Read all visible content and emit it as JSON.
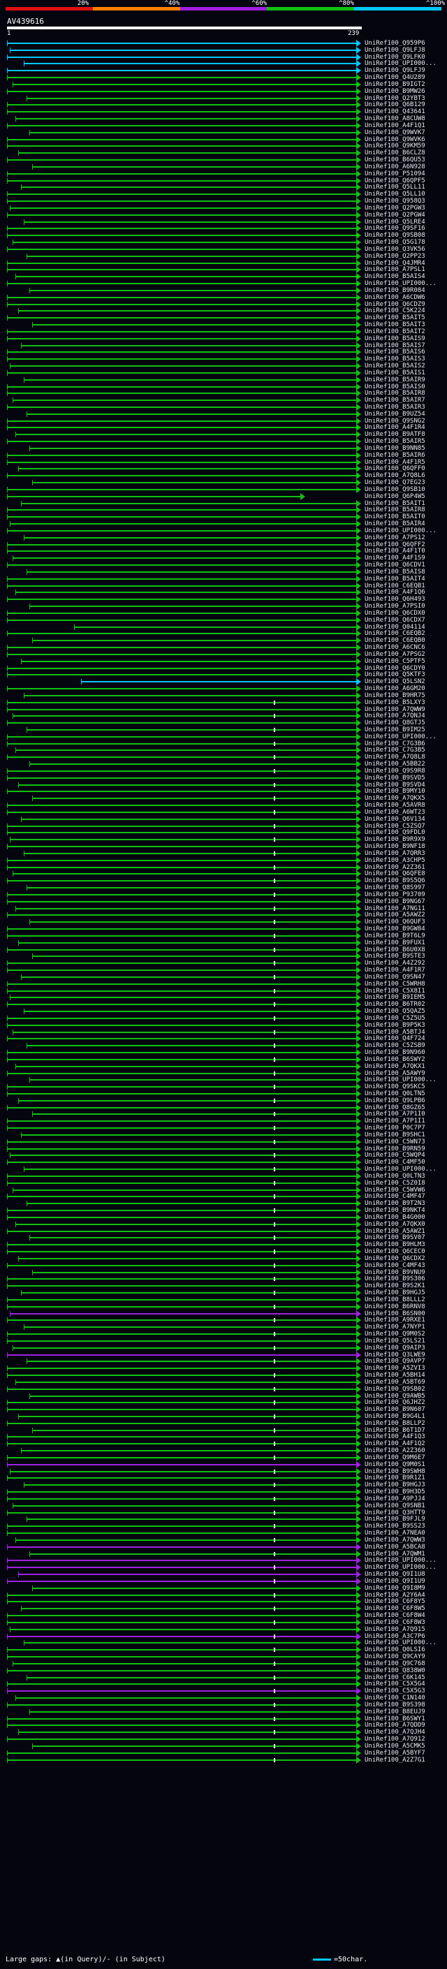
{
  "scale": {
    "labels": [
      "20%",
      "^40%",
      "^60%",
      "^80%",
      "^100%"
    ],
    "colors": [
      "#e01010",
      "#ff8000",
      "#a020e0",
      "#10c010",
      "#00c8ff"
    ]
  },
  "query": {
    "id": "AV439616",
    "start": "1",
    "end": "239"
  },
  "hits": [
    {
      "label": "UniRef100_Q959P6",
      "color": "#00c8ff"
    },
    {
      "label": "UniRef100_Q9LFJ8",
      "color": "#00c8ff"
    },
    {
      "label": "UniRef100_Q9LFK0",
      "color": "#00c8ff"
    },
    {
      "label": "UniRef100_UPI000...",
      "color": "#00c8ff"
    },
    {
      "label": "UniRef100_Q9LFJ9",
      "color": "#00c8ff"
    },
    {
      "label": "UniRef100_Q4U289",
      "color": "#10c010"
    },
    {
      "label": "UniRef100_B9IGT2",
      "color": "#10c010"
    },
    {
      "label": "UniRef100_B9MW26",
      "color": "#10c010"
    },
    {
      "label": "UniRef100_Q2YBT3",
      "color": "#10c010"
    },
    {
      "label": "UniRef100_Q6B129",
      "color": "#10c010"
    },
    {
      "label": "UniRef100_Q43641",
      "color": "#10c010"
    },
    {
      "label": "UniRef100_A8CUW8",
      "color": "#10c010"
    },
    {
      "label": "UniRef100_A4F1Q1",
      "color": "#10c010"
    },
    {
      "label": "UniRef100_Q9WVK7",
      "color": "#10c010"
    },
    {
      "label": "UniRef100_Q9WVK6",
      "color": "#10c010"
    },
    {
      "label": "UniRef100_Q9KM59",
      "color": "#10c010"
    },
    {
      "label": "UniRef100_B6CLZ8",
      "color": "#10c010"
    },
    {
      "label": "UniRef100_B6QU53",
      "color": "#10c010"
    },
    {
      "label": "UniRef100_A6N928",
      "color": "#10c010"
    },
    {
      "label": "UniRef100_P51094",
      "color": "#10c010"
    },
    {
      "label": "UniRef100_Q6QPF5",
      "color": "#10c010"
    },
    {
      "label": "UniRef100_Q5LL11",
      "color": "#10c010"
    },
    {
      "label": "UniRef100_Q5LL10",
      "color": "#10c010"
    },
    {
      "label": "UniRef100_Q958Q3",
      "color": "#10c010"
    },
    {
      "label": "UniRef100_Q2PGW3",
      "color": "#10c010"
    },
    {
      "label": "UniRef100_Q2PGW4",
      "color": "#10c010"
    },
    {
      "label": "UniRef100_Q5LRE4",
      "color": "#10c010"
    },
    {
      "label": "UniRef100_Q9SF16",
      "color": "#10c010"
    },
    {
      "label": "UniRef100_Q9SB08",
      "color": "#10c010"
    },
    {
      "label": "UniRef100_Q5G178",
      "color": "#10c010"
    },
    {
      "label": "UniRef100_Q3VK56",
      "color": "#10c010"
    },
    {
      "label": "UniRef100_Q2PP23",
      "color": "#10c010"
    },
    {
      "label": "UniRef100_Q4JMR4",
      "color": "#10c010"
    },
    {
      "label": "UniRef100_A7PSL1",
      "color": "#10c010"
    },
    {
      "label": "UniRef100_B5AIS4",
      "color": "#10c010"
    },
    {
      "label": "UniRef100_UPI000...",
      "color": "#10c010"
    },
    {
      "label": "UniRef100_B9R084",
      "color": "#10c010"
    },
    {
      "label": "UniRef100_A6CDW6",
      "color": "#10c010"
    },
    {
      "label": "UniRef100_Q6CDZ9",
      "color": "#10c010"
    },
    {
      "label": "UniRef100_C5K224",
      "color": "#10c010"
    },
    {
      "label": "UniRef100_B5AIT5",
      "color": "#10c010"
    },
    {
      "label": "UniRef100_B5AIT3",
      "color": "#10c010"
    },
    {
      "label": "UniRef100_B5AIT2",
      "color": "#10c010"
    },
    {
      "label": "UniRef100_B5AIS9",
      "color": "#10c010"
    },
    {
      "label": "UniRef100_B5AIS7",
      "color": "#10c010"
    },
    {
      "label": "UniRef100_B5AIS6",
      "color": "#10c010"
    },
    {
      "label": "UniRef100_B5AIS3",
      "color": "#10c010"
    },
    {
      "label": "UniRef100_B5AIS2",
      "color": "#10c010"
    },
    {
      "label": "UniRef100_B5AIS1",
      "color": "#10c010"
    },
    {
      "label": "UniRef100_B5AIR9",
      "color": "#10c010"
    },
    {
      "label": "UniRef100_B5AIS0",
      "color": "#10c010"
    },
    {
      "label": "UniRef100_B5AIR8",
      "color": "#10c010"
    },
    {
      "label": "UniRef100_B5AIR7",
      "color": "#10c010"
    },
    {
      "label": "UniRef100_B5AIR3",
      "color": "#10c010"
    },
    {
      "label": "UniRef100_B9UZ54",
      "color": "#10c010"
    },
    {
      "label": "UniRef100_Q9SNG2",
      "color": "#10c010"
    },
    {
      "label": "UniRef100_A4F1R4",
      "color": "#10c010"
    },
    {
      "label": "UniRef100_B9ATF8",
      "color": "#10c010"
    },
    {
      "label": "UniRef100_B5AIR5",
      "color": "#10c010"
    },
    {
      "label": "UniRef100_B9NN85",
      "color": "#10c010"
    },
    {
      "label": "UniRef100_B5AIR6",
      "color": "#10c010"
    },
    {
      "label": "UniRef100_A4F1R5",
      "color": "#10c010"
    },
    {
      "label": "UniRef100_Q6QFF0",
      "color": "#10c010"
    },
    {
      "label": "UniRef100_A7Q8L6",
      "color": "#10c010"
    },
    {
      "label": "UniRef100_Q7EG23",
      "color": "#10c010"
    },
    {
      "label": "UniRef100_Q9SB10",
      "color": "#10c010"
    },
    {
      "label": "UniRef100_Q6P4W5",
      "color": "#10c010"
    },
    {
      "label": "UniRef100_B5AIT1",
      "color": "#10c010"
    },
    {
      "label": "UniRef100_B5AIR8",
      "color": "#10c010"
    },
    {
      "label": "UniRef100_B5AIT0",
      "color": "#10c010"
    },
    {
      "label": "UniRef100_B5AIR4",
      "color": "#10c010"
    },
    {
      "label": "UniRef100_UPI000...",
      "color": "#10c010"
    },
    {
      "label": "UniRef100_A7PS12",
      "color": "#10c010"
    },
    {
      "label": "UniRef100_Q6QFF2",
      "color": "#10c010"
    },
    {
      "label": "UniRef100_A4F1T0",
      "color": "#10c010"
    },
    {
      "label": "UniRef100_A4F1S9",
      "color": "#10c010"
    },
    {
      "label": "UniRef100_Q6CDV1",
      "color": "#10c010"
    },
    {
      "label": "UniRef100_B5AIS8",
      "color": "#10c010"
    },
    {
      "label": "UniRef100_B5AIT4",
      "color": "#10c010"
    },
    {
      "label": "UniRef100_C6EQB1",
      "color": "#10c010"
    },
    {
      "label": "UniRef100_A4F1Q6",
      "color": "#10c010"
    },
    {
      "label": "UniRef100_Q6H493",
      "color": "#10c010"
    },
    {
      "label": "UniRef100_A7PSI0",
      "color": "#10c010"
    },
    {
      "label": "UniRef100_Q6CDX0",
      "color": "#10c010"
    },
    {
      "label": "UniRef100_Q6CDX7",
      "color": "#10c010"
    },
    {
      "label": "UniRef100_Q04114",
      "color": "#10c010"
    },
    {
      "label": "UniRef100_C6EQB2",
      "color": "#10c010"
    },
    {
      "label": "UniRef100_C6EQB0",
      "color": "#10c010"
    },
    {
      "label": "UniRef100_A6CNC6",
      "color": "#10c010"
    },
    {
      "label": "UniRef100_A7PSG2",
      "color": "#10c010"
    },
    {
      "label": "UniRef100_C5PTF5",
      "color": "#10c010"
    },
    {
      "label": "UniRef100_Q6CDY0",
      "color": "#10c010"
    },
    {
      "label": "UniRef100_Q5KTF3",
      "color": "#10c010"
    },
    {
      "label": "UniRef100_Q5LSN2",
      "color": "#00c8ff"
    },
    {
      "label": "UniRef100_A6GM20",
      "color": "#10c010"
    },
    {
      "label": "UniRef100_B9HR75",
      "color": "#10c010"
    },
    {
      "label": "UniRef100_B5LXY3",
      "color": "#10c010"
    },
    {
      "label": "UniRef100_A7QWW9",
      "color": "#10c010"
    },
    {
      "label": "UniRef100_A7QNJ4",
      "color": "#10c010"
    },
    {
      "label": "UniRef100_Q8GTJ5",
      "color": "#10c010"
    },
    {
      "label": "UniRef100_B9IM25",
      "color": "#10c010"
    },
    {
      "label": "UniRef100_UPI000...",
      "color": "#10c010"
    },
    {
      "label": "UniRef100_C7G3B6",
      "color": "#10c010"
    },
    {
      "label": "UniRef100_C7G3B5",
      "color": "#10c010"
    },
    {
      "label": "UniRef100_A7Q8L8",
      "color": "#10c010"
    },
    {
      "label": "UniRef100_A5BB22",
      "color": "#10c010"
    },
    {
      "label": "UniRef100_Q9S9R8",
      "color": "#10c010"
    },
    {
      "label": "UniRef100_B9SVD5",
      "color": "#10c010"
    },
    {
      "label": "UniRef100_B9SVD4",
      "color": "#10c010"
    },
    {
      "label": "UniRef100_B9MY10",
      "color": "#10c010"
    },
    {
      "label": "UniRef100_A7QKX5",
      "color": "#10c010"
    },
    {
      "label": "UniRef100_A5AVR8",
      "color": "#10c010"
    },
    {
      "label": "UniRef100_A6WT23",
      "color": "#10c010"
    },
    {
      "label": "UniRef100_Q6V134",
      "color": "#10c010"
    },
    {
      "label": "UniRef100_C5ZSQ7",
      "color": "#10c010"
    },
    {
      "label": "UniRef100_Q9FDL0",
      "color": "#10c010"
    },
    {
      "label": "UniRef100_B9R9X9",
      "color": "#10c010"
    },
    {
      "label": "UniRef100_B9NF18",
      "color": "#10c010"
    },
    {
      "label": "UniRef100_A7QRR3",
      "color": "#10c010"
    },
    {
      "label": "UniRef100_A3CHP5",
      "color": "#10c010"
    },
    {
      "label": "UniRef100_A2Z361",
      "color": "#10c010"
    },
    {
      "label": "UniRef100_Q6QFE8",
      "color": "#10c010"
    },
    {
      "label": "UniRef100_B9S5Q6",
      "color": "#10c010"
    },
    {
      "label": "UniRef100_Q8S997",
      "color": "#10c010"
    },
    {
      "label": "UniRef100_P93709",
      "color": "#10c010"
    },
    {
      "label": "UniRef100_B9NG67",
      "color": "#10c010"
    },
    {
      "label": "UniRef100_A7NG11",
      "color": "#10c010"
    },
    {
      "label": "UniRef100_A5AWZ2",
      "color": "#10c010"
    },
    {
      "label": "UniRef100_Q6QUF3",
      "color": "#10c010"
    },
    {
      "label": "UniRef100_B9GW84",
      "color": "#10c010"
    },
    {
      "label": "UniRef100_B9T6L9",
      "color": "#10c010"
    },
    {
      "label": "UniRef100_B9FUX1",
      "color": "#10c010"
    },
    {
      "label": "UniRef100_B6U0X8",
      "color": "#10c010"
    },
    {
      "label": "UniRef100_B9STE3",
      "color": "#10c010"
    },
    {
      "label": "UniRef100_A4Z292",
      "color": "#10c010"
    },
    {
      "label": "UniRef100_A4F1R7",
      "color": "#10c010"
    },
    {
      "label": "UniRef100_Q9SN47",
      "color": "#10c010"
    },
    {
      "label": "UniRef100_C5WRH8",
      "color": "#10c010"
    },
    {
      "label": "UniRef100_C5X8I1",
      "color": "#10c010"
    },
    {
      "label": "UniRef100_B9IEM5",
      "color": "#10c010"
    },
    {
      "label": "UniRef100_B6TR02",
      "color": "#10c010"
    },
    {
      "label": "UniRef100_Q5QAZ5",
      "color": "#10c010"
    },
    {
      "label": "UniRef100_C5Z5U5",
      "color": "#10c010"
    },
    {
      "label": "UniRef100_B9P5K3",
      "color": "#10c010"
    },
    {
      "label": "UniRef100_A5BTJ4",
      "color": "#10c010"
    },
    {
      "label": "UniRef100_Q4F724",
      "color": "#10c010"
    },
    {
      "label": "UniRef100_C5ZSB9",
      "color": "#10c010"
    },
    {
      "label": "UniRef100_B9N960",
      "color": "#10c010"
    },
    {
      "label": "UniRef100_B6SWY2",
      "color": "#10c010"
    },
    {
      "label": "UniRef100_A7QKX1",
      "color": "#10c010"
    },
    {
      "label": "UniRef100_A5AWY9",
      "color": "#10c010"
    },
    {
      "label": "UniRef100_UPI000...",
      "color": "#10c010"
    },
    {
      "label": "UniRef100_Q9SKC5",
      "color": "#10c010"
    },
    {
      "label": "UniRef100_Q0LTN5",
      "color": "#10c010"
    },
    {
      "label": "UniRef100_Q9LPB6",
      "color": "#10c010"
    },
    {
      "label": "UniRef100_Q8GZ65",
      "color": "#10c010"
    },
    {
      "label": "UniRef100_A7P1I0",
      "color": "#10c010"
    },
    {
      "label": "UniRef100_A7P1I1",
      "color": "#10c010"
    },
    {
      "label": "UniRef100_P0C7P7",
      "color": "#10c010"
    },
    {
      "label": "UniRef100_B9SHC1",
      "color": "#10c010"
    },
    {
      "label": "UniRef100_C5WN73",
      "color": "#10c010"
    },
    {
      "label": "UniRef100_B9RN59",
      "color": "#10c010"
    },
    {
      "label": "UniRef100_C5WQP4",
      "color": "#10c010"
    },
    {
      "label": "UniRef100_C4MF50",
      "color": "#10c010"
    },
    {
      "label": "UniRef100_UPI000...",
      "color": "#10c010"
    },
    {
      "label": "UniRef100_Q0LTN3",
      "color": "#10c010"
    },
    {
      "label": "UniRef100_C5Z0I8",
      "color": "#10c010"
    },
    {
      "label": "UniRef100_C5WVW6",
      "color": "#10c010"
    },
    {
      "label": "UniRef100_C4MF47",
      "color": "#10c010"
    },
    {
      "label": "UniRef100_B9T2N3",
      "color": "#10c010"
    },
    {
      "label": "UniRef100_B9NKT4",
      "color": "#10c010"
    },
    {
      "label": "UniRef100_B4G000",
      "color": "#10c010"
    },
    {
      "label": "UniRef100_A7QKX0",
      "color": "#10c010"
    },
    {
      "label": "UniRef100_A5AWZ1",
      "color": "#10c010"
    },
    {
      "label": "UniRef100_B9SV07",
      "color": "#10c010"
    },
    {
      "label": "UniRef100_B9HLM3",
      "color": "#10c010"
    },
    {
      "label": "UniRef100_Q6CEC0",
      "color": "#10c010"
    },
    {
      "label": "UniRef100_Q6CDX2",
      "color": "#10c010"
    },
    {
      "label": "UniRef100_C4MF43",
      "color": "#10c010"
    },
    {
      "label": "UniRef100_B9VNU9",
      "color": "#10c010"
    },
    {
      "label": "UniRef100_B9S306",
      "color": "#10c010"
    },
    {
      "label": "UniRef100_B9S2K1",
      "color": "#10c010"
    },
    {
      "label": "UniRef100_B9HGJ5",
      "color": "#10c010"
    },
    {
      "label": "UniRef100_B8LLL2",
      "color": "#10c010"
    },
    {
      "label": "UniRef100_B6RNV8",
      "color": "#10c010"
    },
    {
      "label": "UniRef100_B6SN00",
      "color": "#a020e0"
    },
    {
      "label": "UniRef100_A9RXE1",
      "color": "#10c010"
    },
    {
      "label": "UniRef100_A7NYP1",
      "color": "#10c010"
    },
    {
      "label": "UniRef100_Q9M0S2",
      "color": "#10c010"
    },
    {
      "label": "UniRef100_Q5LS21",
      "color": "#10c010"
    },
    {
      "label": "UniRef100_Q9AIP3",
      "color": "#10c010"
    },
    {
      "label": "UniRef100_Q3LWE9",
      "color": "#a020e0"
    },
    {
      "label": "UniRef100_Q9AVP7",
      "color": "#10c010"
    },
    {
      "label": "UniRef100_A5ZVI3",
      "color": "#10c010"
    },
    {
      "label": "UniRef100_A5BH14",
      "color": "#10c010"
    },
    {
      "label": "UniRef100_A5BT69",
      "color": "#10c010"
    },
    {
      "label": "UniRef100_Q9SB02",
      "color": "#10c010"
    },
    {
      "label": "UniRef100_Q9AWB5",
      "color": "#10c010"
    },
    {
      "label": "UniRef100_Q6JHZ2",
      "color": "#10c010"
    },
    {
      "label": "UniRef100_B9N607",
      "color": "#10c010"
    },
    {
      "label": "UniRef100_B9G4L1",
      "color": "#10c010"
    },
    {
      "label": "UniRef100_B8LLP2",
      "color": "#10c010"
    },
    {
      "label": "UniRef100_B6T1D7",
      "color": "#10c010"
    },
    {
      "label": "UniRef100_A4F1Q3",
      "color": "#10c010"
    },
    {
      "label": "UniRef100_A4F1Q2",
      "color": "#10c010"
    },
    {
      "label": "UniRef100_A2Z360",
      "color": "#10c010"
    },
    {
      "label": "UniRef100_Q9M6E7",
      "color": "#10c010"
    },
    {
      "label": "UniRef100_Q9M0S1",
      "color": "#a020e0"
    },
    {
      "label": "UniRef100_B9SWH8",
      "color": "#10c010"
    },
    {
      "label": "UniRef100_B9R1Z1",
      "color": "#10c010"
    },
    {
      "label": "UniRef100_B9HGJ3",
      "color": "#10c010"
    },
    {
      "label": "UniRef100_B9H3D5",
      "color": "#10c010"
    },
    {
      "label": "UniRef100_A9PJJ4",
      "color": "#10c010"
    },
    {
      "label": "UniRef100_Q9SNB1",
      "color": "#10c010"
    },
    {
      "label": "UniRef100_Q3HTT9",
      "color": "#10c010"
    },
    {
      "label": "UniRef100_B9FJL9",
      "color": "#10c010"
    },
    {
      "label": "UniRef100_B9SS23",
      "color": "#10c010"
    },
    {
      "label": "UniRef100_A7NEA0",
      "color": "#10c010"
    },
    {
      "label": "UniRef100_A7QWW3",
      "color": "#10c010"
    },
    {
      "label": "UniRef100_A5BCA8",
      "color": "#a020e0"
    },
    {
      "label": "UniRef100_A7QWM1",
      "color": "#10c010"
    },
    {
      "label": "UniRef100_UPI000...",
      "color": "#a020e0"
    },
    {
      "label": "UniRef100_UPI000...",
      "color": "#a020e0"
    },
    {
      "label": "UniRef100_Q9I1U8",
      "color": "#a020e0"
    },
    {
      "label": "UniRef100_Q9I1U9",
      "color": "#a020e0"
    },
    {
      "label": "UniRef100_Q9I8M9",
      "color": "#10c010"
    },
    {
      "label": "UniRef100_A2Y6A4",
      "color": "#10c010"
    },
    {
      "label": "UniRef100_C6F8Y5",
      "color": "#10c010"
    },
    {
      "label": "UniRef100_C6F8W5",
      "color": "#10c010"
    },
    {
      "label": "UniRef100_C6F8W4",
      "color": "#10c010"
    },
    {
      "label": "UniRef100_C6F8W3",
      "color": "#10c010"
    },
    {
      "label": "UniRef100_A7Q915",
      "color": "#10c010"
    },
    {
      "label": "UniRef100_A3C7P6",
      "color": "#a020e0"
    },
    {
      "label": "UniRef100_UPI000...",
      "color": "#10c010"
    },
    {
      "label": "UniRef100_Q0LSI6",
      "color": "#10c010"
    },
    {
      "label": "UniRef100_Q9CAY9",
      "color": "#10c010"
    },
    {
      "label": "UniRef100_Q9C768",
      "color": "#10c010"
    },
    {
      "label": "UniRef100_Q838W0",
      "color": "#10c010"
    },
    {
      "label": "UniRef100_C6K145",
      "color": "#10c010"
    },
    {
      "label": "UniRef100_C5X5G4",
      "color": "#10c010"
    },
    {
      "label": "UniRef100_C5X5G3",
      "color": "#a020e0"
    },
    {
      "label": "UniRef100_C1N140",
      "color": "#10c010"
    },
    {
      "label": "UniRef100_B9S398",
      "color": "#10c010"
    },
    {
      "label": "UniRef100_B8EUJ9",
      "color": "#10c010"
    },
    {
      "label": "UniRef100_B6SWY1",
      "color": "#10c010"
    },
    {
      "label": "UniRef100_A7QDD9",
      "color": "#10c010"
    },
    {
      "label": "UniRef100_A7QJH4",
      "color": "#10c010"
    },
    {
      "label": "UniRef100_A7Q912",
      "color": "#10c010"
    },
    {
      "label": "UniRef100_A5CMK5",
      "color": "#10c010"
    },
    {
      "label": "UniRef100_A5BYF7",
      "color": "#10c010"
    },
    {
      "label": "UniRef100_A2Z7G1",
      "color": "#10c010"
    }
  ],
  "legend": {
    "gaps_text": "Large gaps: ▲(in Query)/- (in Subject)",
    "scale_text": "=50char."
  }
}
